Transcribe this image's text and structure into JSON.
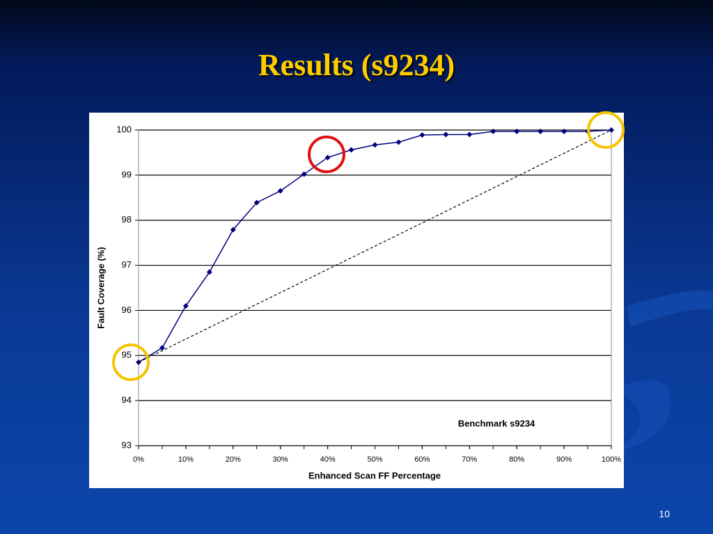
{
  "slide": {
    "title": "Results (s9234)",
    "page_number": "10"
  },
  "chart_data": {
    "type": "line",
    "annotation": "Benchmark s9234",
    "x_label": "Enhanced Scan FF Percentage",
    "y_label": "Fault Coverage (%)",
    "x": [
      0,
      5,
      10,
      15,
      20,
      25,
      30,
      35,
      40,
      45,
      50,
      55,
      60,
      65,
      70,
      75,
      80,
      85,
      90,
      95,
      100
    ],
    "series": [
      {
        "color": "#000080",
        "values": [
          94.85,
          95.17,
          96.1,
          96.85,
          97.79,
          98.39,
          98.65,
          99.02,
          99.39,
          99.56,
          99.67,
          99.73,
          99.89,
          99.9,
          99.9,
          99.97,
          99.97,
          99.97,
          99.97,
          99.97,
          100
        ]
      },
      {
        "color": "#000000",
        "dashed": true,
        "x": [
          0,
          100
        ],
        "values": [
          94.85,
          100
        ]
      }
    ],
    "xlim": [
      0,
      100
    ],
    "xticks": [
      {
        "value": 0,
        "label": "0%"
      },
      {
        "value": 10,
        "label": "10%"
      },
      {
        "value": 20,
        "label": "20%"
      },
      {
        "value": 30,
        "label": "30%"
      },
      {
        "value": 40,
        "label": "40%"
      },
      {
        "value": 50,
        "label": "50%"
      },
      {
        "value": 60,
        "label": "60%"
      },
      {
        "value": 70,
        "label": "70%"
      },
      {
        "value": 80,
        "label": "80%"
      },
      {
        "value": 90,
        "label": "90%"
      },
      {
        "value": 100,
        "label": "100%"
      }
    ],
    "ylim": [
      93,
      100
    ],
    "yticks": [
      93,
      94,
      95,
      96,
      97,
      98,
      99,
      100
    ],
    "grid": true
  }
}
